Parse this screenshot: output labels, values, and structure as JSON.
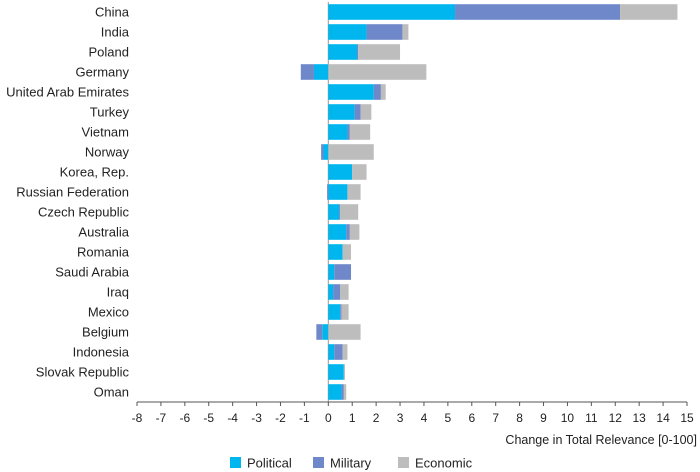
{
  "chart_data": {
    "type": "bar",
    "orientation": "horizontal",
    "stacked": true,
    "title": "",
    "xlabel": "Change in Total Relevance [0-100]",
    "ylabel": "",
    "xlim": [
      -8,
      15
    ],
    "x_ticks": [
      -8,
      -7,
      -6,
      -5,
      -4,
      -3,
      -2,
      -1,
      0,
      1,
      2,
      3,
      4,
      5,
      6,
      7,
      8,
      9,
      10,
      11,
      12,
      13,
      14,
      15
    ],
    "grid": "vertical gridline at x=0 only",
    "legend_position": "bottom-center",
    "categories": [
      "China",
      "India",
      "Poland",
      "Germany",
      "United Arab Emirates",
      "Turkey",
      "Vietnam",
      "Norway",
      "Korea, Rep.",
      "Russian Federation",
      "Czech Republic",
      "Australia",
      "Romania",
      "Saudi Arabia",
      "Iraq",
      "Mexico",
      "Belgium",
      "Indonesia",
      "Slovak Republic",
      "Oman"
    ],
    "series": [
      {
        "name": "Political",
        "color": "#00b6ef",
        "values": [
          5.3,
          1.6,
          1.2,
          -0.6,
          1.9,
          1.1,
          0.8,
          -0.2,
          1.0,
          0.8,
          0.45,
          0.75,
          0.6,
          0.25,
          0.2,
          0.5,
          -0.25,
          0.25,
          0.65,
          0.55
        ]
      },
      {
        "name": "Military",
        "color": "#6e88c9",
        "values": [
          6.9,
          1.5,
          0.05,
          -0.55,
          0.3,
          0.25,
          0.1,
          -0.1,
          0.0,
          -0.05,
          0.05,
          0.15,
          0.0,
          0.7,
          0.3,
          0.05,
          -0.25,
          0.35,
          0.0,
          0.1
        ]
      },
      {
        "name": "Economic",
        "color": "#bdbdbd",
        "values": [
          2.4,
          0.25,
          1.75,
          4.1,
          0.2,
          0.45,
          0.85,
          1.9,
          0.6,
          0.55,
          0.75,
          0.4,
          0.35,
          0.0,
          0.35,
          0.3,
          1.35,
          0.2,
          0.05,
          0.1
        ]
      }
    ]
  }
}
